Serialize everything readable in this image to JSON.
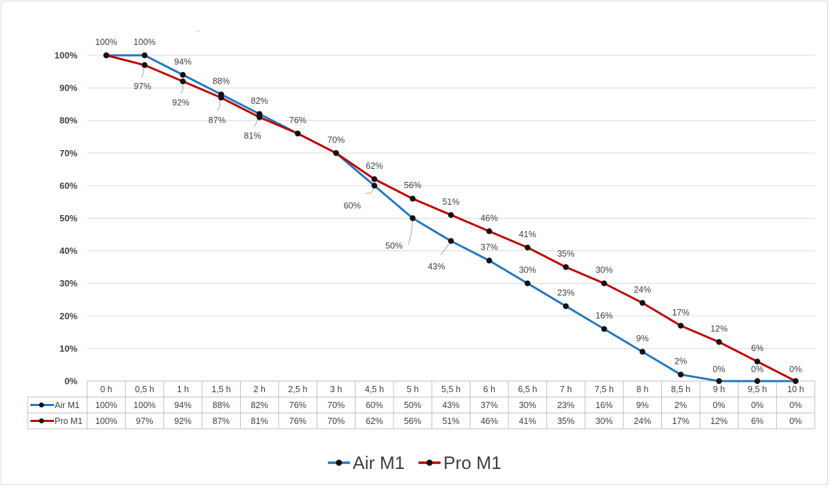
{
  "chart_data": {
    "type": "line",
    "title": "",
    "xlabel": "",
    "ylabel": "",
    "categories": [
      "0 h",
      "0,5 h",
      "1 h",
      "1,5 h",
      "2 h",
      "2,5 h",
      "3 h",
      "4,5 h",
      "5 h",
      "5,5 h",
      "6 h",
      "6,5 h",
      "7 h",
      "7,5 h",
      "8 h",
      "8,5 h",
      "9 h",
      "9,5 h",
      "10 h"
    ],
    "series": [
      {
        "name": "Air M1",
        "color": "#1f77c4",
        "values": [
          100,
          100,
          94,
          88,
          82,
          76,
          70,
          60,
          50,
          43,
          37,
          30,
          23,
          16,
          9,
          2,
          0,
          0,
          0
        ],
        "labels": [
          "100%",
          "100%",
          "94%",
          "88%",
          "82%",
          "76%",
          "70%",
          "60%",
          "50%",
          "43%",
          "37%",
          "30%",
          "23%",
          "16%",
          "9%",
          "2%",
          "0%",
          "0%",
          "0%"
        ]
      },
      {
        "name": "Pro M1",
        "color": "#c00000",
        "values": [
          100,
          97,
          92,
          87,
          81,
          76,
          70,
          62,
          56,
          51,
          46,
          41,
          35,
          30,
          24,
          17,
          12,
          6,
          0
        ],
        "labels": [
          "100%",
          "97%",
          "92%",
          "87%",
          "81%",
          "76%",
          "70%",
          "62%",
          "56%",
          "51%",
          "46%",
          "41%",
          "35%",
          "30%",
          "24%",
          "17%",
          "12%",
          "6%",
          "0%"
        ]
      }
    ],
    "ylim": [
      0,
      100
    ],
    "yticks": [
      0,
      10,
      20,
      30,
      40,
      50,
      60,
      70,
      80,
      90,
      100
    ],
    "ytick_labels": [
      "0%",
      "10%",
      "20%",
      "30%",
      "40%",
      "50%",
      "60%",
      "70%",
      "80%",
      "90%",
      "100%"
    ],
    "grid": true,
    "legend_position": "bottom",
    "data_table": true
  }
}
